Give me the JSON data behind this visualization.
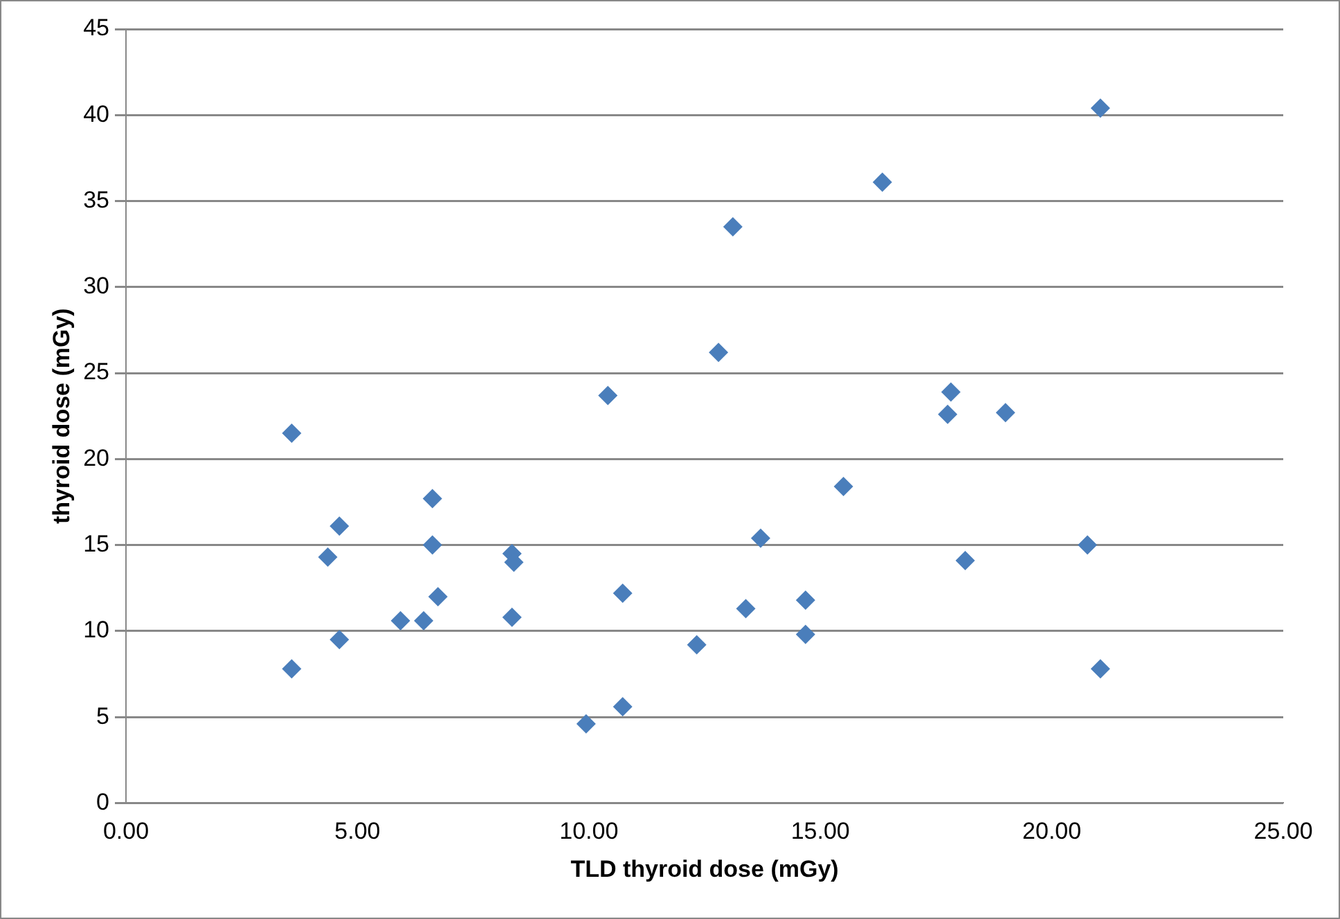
{
  "chart_data": {
    "type": "scatter",
    "xlabel": "TLD thyroid dose (mGy)",
    "ylabel": "thyroid dose (mGy)",
    "x": [
      3.58,
      3.58,
      4.36,
      4.61,
      4.61,
      5.93,
      6.43,
      6.62,
      6.62,
      6.74,
      8.34,
      8.38,
      8.34,
      9.94,
      10.41,
      10.73,
      10.73,
      12.33,
      12.8,
      13.11,
      13.39,
      13.71,
      14.68,
      14.68,
      15.5,
      16.34,
      17.75,
      17.82,
      18.13,
      19.0,
      20.77,
      21.05,
      21.05
    ],
    "values": [
      21.5,
      7.8,
      14.3,
      16.1,
      9.5,
      10.6,
      10.6,
      17.7,
      15.0,
      12.0,
      14.5,
      14.0,
      10.8,
      4.6,
      23.7,
      12.2,
      5.6,
      9.2,
      26.2,
      33.5,
      11.3,
      15.4,
      11.8,
      9.8,
      18.4,
      36.1,
      22.6,
      23.9,
      14.1,
      22.7,
      15.0,
      40.4,
      7.8
    ],
    "color": "#4a7ebb",
    "marker": "diamond",
    "grid": "y",
    "legend": false,
    "xlim": [
      0,
      25
    ],
    "xticks": [
      {
        "value": 0,
        "label": "0.00"
      },
      {
        "value": 5,
        "label": "5.00"
      },
      {
        "value": 10,
        "label": "10.00"
      },
      {
        "value": 15,
        "label": "15.00"
      },
      {
        "value": 20,
        "label": "20.00"
      },
      {
        "value": 25,
        "label": "25.00"
      }
    ],
    "ylim": [
      0,
      45
    ],
    "yticks": [
      0,
      5,
      10,
      15,
      20,
      25,
      30,
      35,
      40,
      45
    ]
  }
}
